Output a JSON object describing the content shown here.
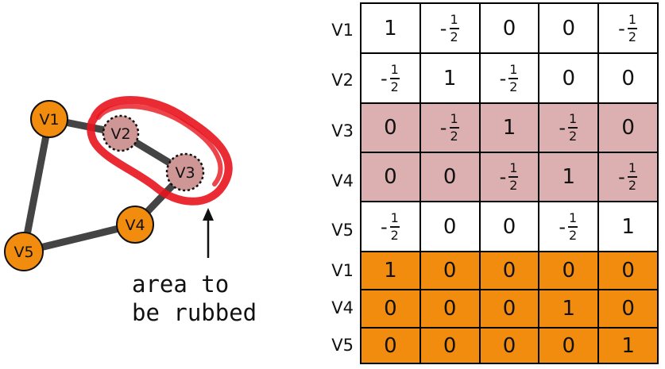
{
  "graph": {
    "nodes": [
      {
        "id": "V1",
        "label": "V1",
        "fill": "#f28c0e"
      },
      {
        "id": "V2",
        "label": "V2",
        "fill": "#cf9696"
      },
      {
        "id": "V3",
        "label": "V3",
        "fill": "#cf9696"
      },
      {
        "id": "V4",
        "label": "V4",
        "fill": "#f28c0e"
      },
      {
        "id": "V5",
        "label": "V5",
        "fill": "#f28c0e"
      }
    ],
    "edges": [
      [
        "V1",
        "V2"
      ],
      [
        "V2",
        "V3"
      ],
      [
        "V3",
        "V4"
      ],
      [
        "V4",
        "V5"
      ],
      [
        "V5",
        "V1"
      ]
    ],
    "highlight_color": "#e8141e",
    "caption_lines": [
      "area to",
      "be rubbed"
    ]
  },
  "matrix": {
    "row_labels": [
      "V1",
      "V2",
      "V3",
      "V4",
      "V5",
      "V1",
      "V4",
      "V5"
    ],
    "row_fills": [
      "#ffffff",
      "#ffffff",
      "#dcb0b0",
      "#dcb0b0",
      "#ffffff",
      "#f28c0e",
      "#f28c0e",
      "#f28c0e"
    ],
    "rows": [
      [
        "1",
        "-1/2",
        "0",
        "0",
        "-1/2"
      ],
      [
        "-1/2",
        "1",
        "-1/2",
        "0",
        "0"
      ],
      [
        "0",
        "-1/2",
        "1",
        "-1/2",
        "0"
      ],
      [
        "0",
        "0",
        "-1/2",
        "1",
        "-1/2"
      ],
      [
        "-1/2",
        "0",
        "0",
        "-1/2",
        "1"
      ],
      [
        "1",
        "0",
        "0",
        "0",
        "0"
      ],
      [
        "0",
        "0",
        "0",
        "1",
        "0"
      ],
      [
        "0",
        "0",
        "0",
        "0",
        "1"
      ]
    ]
  }
}
